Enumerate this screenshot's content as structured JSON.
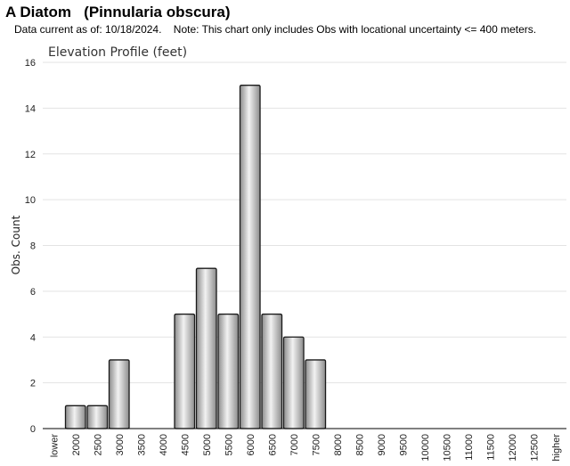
{
  "header": {
    "title": "A Diatom   (Pinnularia obscura)",
    "subtitle": "Data current as of: 10/18/2024.    Note: This chart only includes Obs with locational uncertainty <= 400 meters."
  },
  "chart_data": {
    "type": "bar",
    "title": "Elevation Profile (feet)",
    "xlabel": "",
    "ylabel": "Obs. Count",
    "ylim": [
      0,
      16
    ],
    "yticks": [
      0,
      2,
      4,
      6,
      8,
      10,
      12,
      14,
      16
    ],
    "grid": true,
    "categories": [
      "lower",
      "2000",
      "2500",
      "3000",
      "3500",
      "4000",
      "4500",
      "5000",
      "5500",
      "6000",
      "6500",
      "7000",
      "7500",
      "8000",
      "8500",
      "9000",
      "9500",
      "10000",
      "10500",
      "11000",
      "11500",
      "12000",
      "12500",
      "higher"
    ],
    "values": [
      0,
      1,
      1,
      3,
      0,
      0,
      5,
      7,
      5,
      15,
      5,
      4,
      3,
      0,
      0,
      0,
      0,
      0,
      0,
      0,
      0,
      0,
      0,
      0
    ],
    "colors": {
      "bar_light": "#f2f2f2",
      "bar_dark": "#8c8c8c",
      "bar_edge": "#1a1a1a",
      "grid": "#e3e3e3",
      "axis": "#000000"
    }
  }
}
